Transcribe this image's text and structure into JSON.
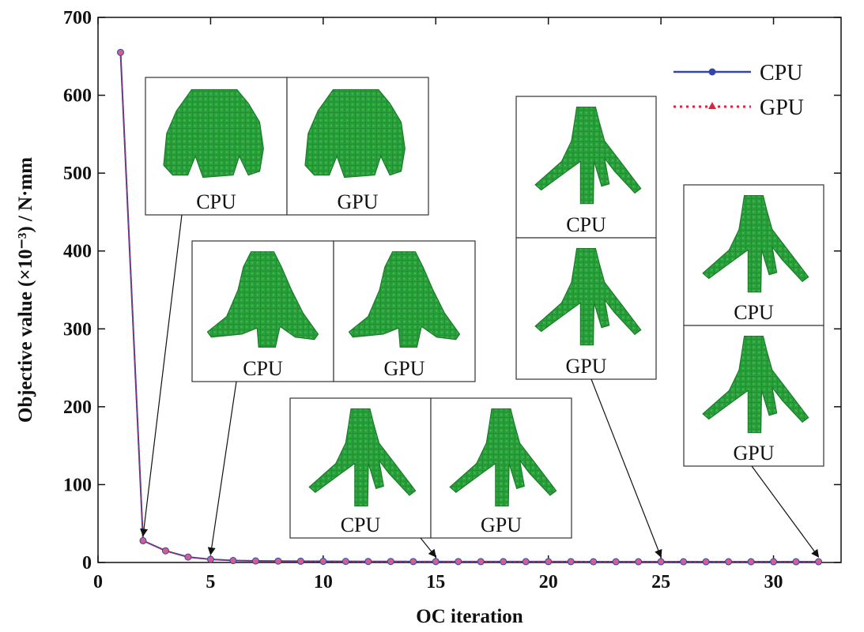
{
  "chart_data": {
    "type": "line",
    "xlabel": "OC iteration",
    "ylabel": "Objective value (×10⁻³) / N·mm",
    "xlim": [
      0,
      33
    ],
    "ylim": [
      0,
      700
    ],
    "xticks": [
      "0",
      "5",
      "10",
      "15",
      "20",
      "25",
      "30"
    ],
    "yticks": [
      "0",
      "100",
      "200",
      "300",
      "400",
      "500",
      "600",
      "700"
    ],
    "grid": false,
    "legend_position": "top-right",
    "x": [
      1,
      2,
      3,
      4,
      5,
      6,
      7,
      8,
      9,
      10,
      11,
      12,
      13,
      14,
      15,
      16,
      17,
      18,
      19,
      20,
      21,
      22,
      23,
      24,
      25,
      26,
      27,
      28,
      29,
      30,
      31,
      32
    ],
    "series": [
      {
        "name": "CPU",
        "color": "#3347a8",
        "style": "solid line, circle markers",
        "values": [
          655,
          28,
          15,
          7,
          4,
          2.5,
          2,
          1.8,
          1.6,
          1.5,
          1.4,
          1.3,
          1.3,
          1.2,
          1.2,
          1.2,
          1.1,
          1.1,
          1.1,
          1.1,
          1.1,
          1.0,
          1.0,
          1.0,
          1.0,
          1.0,
          1.0,
          1.0,
          1.0,
          1.0,
          1.0,
          1.0
        ]
      },
      {
        "name": "GPU",
        "color": "#e0213a",
        "style": "dotted line, triangle markers",
        "values": [
          655,
          28,
          15,
          7,
          4,
          2.5,
          2,
          1.8,
          1.6,
          1.5,
          1.4,
          1.3,
          1.3,
          1.2,
          1.2,
          1.2,
          1.1,
          1.1,
          1.1,
          1.1,
          1.1,
          1.0,
          1.0,
          1.0,
          1.0,
          1.0,
          1.0,
          1.0,
          1.0,
          1.0,
          1.0,
          1.0
        ]
      }
    ],
    "insets": [
      {
        "iteration": 2,
        "layout": "horizontal",
        "labels": [
          "CPU",
          "GPU"
        ],
        "shape": "dome"
      },
      {
        "iteration": 5,
        "layout": "horizontal",
        "labels": [
          "CPU",
          "GPU"
        ],
        "shape": "tent"
      },
      {
        "iteration": 15,
        "layout": "horizontal",
        "labels": [
          "CPU",
          "GPU"
        ],
        "shape": "tripod"
      },
      {
        "iteration": 25,
        "layout": "vertical",
        "labels": [
          "CPU",
          "GPU"
        ],
        "shape": "tripod"
      },
      {
        "iteration": 32,
        "layout": "vertical",
        "labels": [
          "CPU",
          "GPU"
        ],
        "shape": "tripod"
      }
    ],
    "model_color": "#22a33a"
  }
}
